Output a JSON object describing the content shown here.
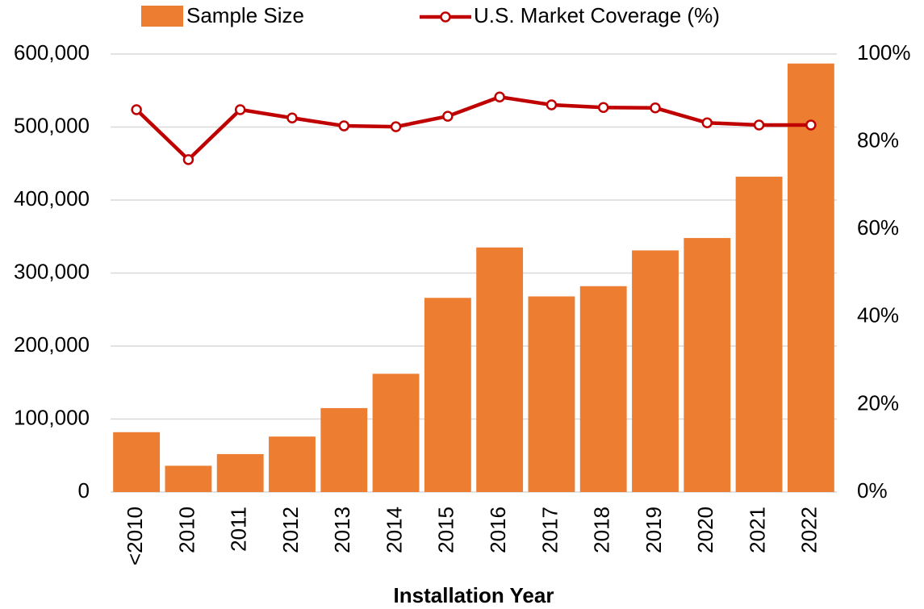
{
  "chart_data": {
    "type": "bar_line",
    "x_label": "Installation Year",
    "categories": [
      "<2010",
      "2010",
      "2011",
      "2012",
      "2013",
      "2014",
      "2015",
      "2016",
      "2017",
      "2018",
      "2019",
      "2020",
      "2021",
      "2022"
    ],
    "series": [
      {
        "name": "Sample Size",
        "type": "bar",
        "color": "#ed7d31",
        "values": [
          82000,
          36000,
          52000,
          76000,
          115000,
          162000,
          266000,
          335000,
          268000,
          282000,
          331000,
          348000,
          432000,
          587000
        ]
      },
      {
        "name": "U.S. Market Coverage (%)",
        "type": "line",
        "axis": "y2",
        "color": "#c00000",
        "values": [
          87.3,
          75.9,
          87.3,
          85.4,
          83.6,
          83.4,
          85.8,
          90.2,
          88.4,
          87.8,
          87.7,
          84.3,
          83.8,
          83.8
        ]
      }
    ],
    "ylim": [
      0,
      600000
    ],
    "yticks": [
      0,
      {
        "value": 100000,
        "label": "100,000"
      },
      {
        "value": 200000,
        "label": "200,000"
      },
      {
        "value": 300000,
        "label": "300,000"
      },
      {
        "value": 400000,
        "label": "400,000"
      },
      {
        "value": 500000,
        "label": "500,000"
      },
      {
        "value": 600000,
        "label": "600,000"
      }
    ],
    "y2lim": [
      0,
      100
    ],
    "y2ticks": [
      {
        "value": 0,
        "label": "0%"
      },
      {
        "value": 20,
        "label": "20%"
      },
      {
        "value": 40,
        "label": "40%"
      },
      {
        "value": 60,
        "label": "60%"
      },
      {
        "value": 80,
        "label": "80%"
      },
      {
        "value": 100,
        "label": "100%"
      }
    ],
    "grid": true,
    "legend": "top"
  }
}
